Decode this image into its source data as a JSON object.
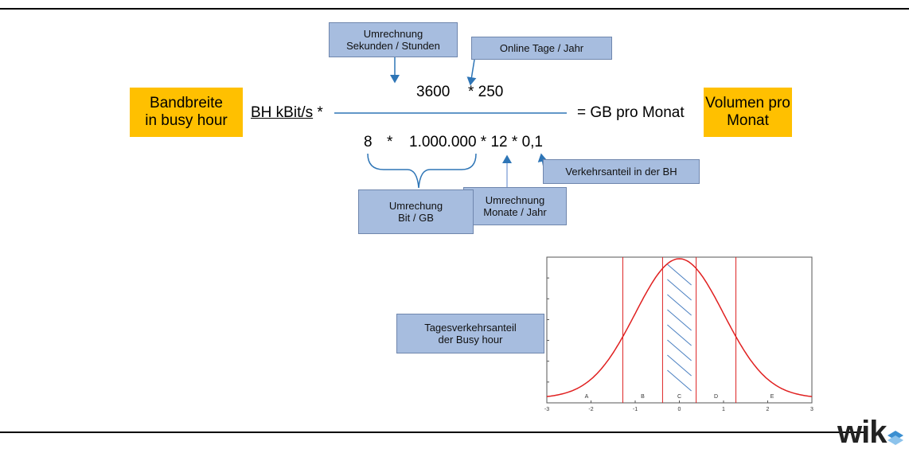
{
  "formula": {
    "numerator_a": "3600",
    "numerator_b": "* 250",
    "lhs": "BH kBit/s",
    "lhs_op": "*",
    "rhs": "= GB pro Monat",
    "den_8": "8",
    "den_star": "*",
    "den_rest": "1.000.000 * 12 * 0,1"
  },
  "boxes": {
    "bandbreite": [
      "Bandbreite",
      "in busy hour"
    ],
    "volumen": [
      "Volumen pro",
      "Monat"
    ],
    "umrechnung_sek": [
      "Umrechnung",
      "Sekunden / Stunden"
    ],
    "online_tage": "Online Tage / Jahr",
    "verkehrsanteil": "Verkehrsanteil in der BH",
    "umrechnung_monate": [
      "Umrechnung",
      "Monate / Jahr"
    ],
    "umrechung_bit": [
      "Umrechung",
      "Bit / GB"
    ],
    "tagesverkehr": [
      "Tagesverkehrsanteil",
      "der Busy hour"
    ]
  },
  "chart_data": {
    "type": "line",
    "series": [
      {
        "function": "normal density, mean 0, sd 1"
      }
    ],
    "xlim": [
      -3,
      3
    ],
    "x_ticks": [
      "-3",
      "-2",
      "-1",
      "0",
      "1",
      "2",
      "3"
    ],
    "regions": [
      "A",
      "B",
      "C",
      "D",
      "E"
    ],
    "region_boundaries": [
      -1.28,
      -0.38,
      0.38,
      1.28
    ],
    "hatched_region": "C"
  },
  "logo": {
    "text": "wik"
  },
  "colors": {
    "box_blue": "#a7bddf",
    "box_orange": "#ffc000",
    "arrow": "#2e75b6",
    "curve": "#e02020"
  }
}
